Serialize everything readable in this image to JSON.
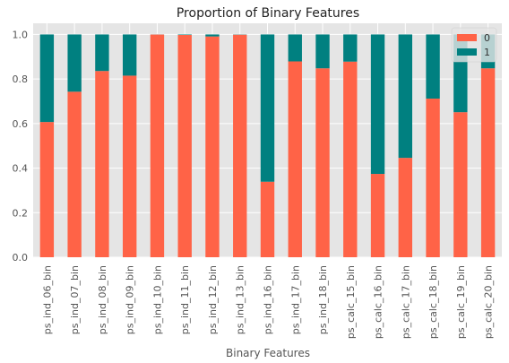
{
  "chart_data": {
    "type": "bar",
    "stacked": true,
    "title": "Proportion of Binary Features",
    "xlabel": "Binary Features",
    "ylabel": "",
    "ylim": [
      0,
      1.05
    ],
    "yticks": [
      "0.0",
      "0.2",
      "0.4",
      "0.6",
      "0.8",
      "1.0"
    ],
    "categories": [
      "ps_ind_06_bin",
      "ps_ind_07_bin",
      "ps_ind_08_bin",
      "ps_ind_09_bin",
      "ps_ind_10_bin",
      "ps_ind_11_bin",
      "ps_ind_12_bin",
      "ps_ind_13_bin",
      "ps_ind_16_bin",
      "ps_ind_17_bin",
      "ps_ind_18_bin",
      "ps_calc_15_bin",
      "ps_calc_16_bin",
      "ps_calc_17_bin",
      "ps_calc_18_bin",
      "ps_calc_19_bin",
      "ps_calc_20_bin"
    ],
    "series": [
      {
        "name": "0",
        "color": "#ff6347",
        "values": [
          0.607,
          0.743,
          0.836,
          0.815,
          0.9996,
          0.998,
          0.991,
          0.999,
          0.339,
          0.879,
          0.848,
          0.878,
          0.374,
          0.446,
          0.712,
          0.651,
          0.848
        ]
      },
      {
        "name": "1",
        "color": "#008080",
        "values": [
          0.393,
          0.257,
          0.164,
          0.185,
          0.0004,
          0.002,
          0.009,
          0.001,
          0.661,
          0.121,
          0.152,
          0.122,
          0.626,
          0.554,
          0.288,
          0.349,
          0.152
        ]
      }
    ],
    "grid": true,
    "legend_position": "top-right",
    "background": "#e5e5e5"
  }
}
